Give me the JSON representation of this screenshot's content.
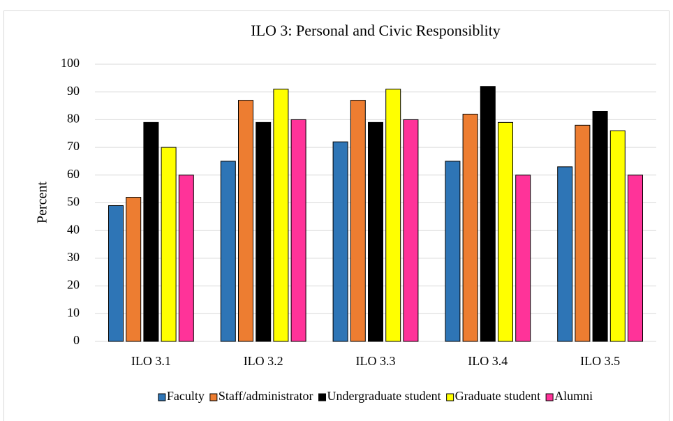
{
  "chart_data": {
    "type": "bar",
    "title": "ILO 3: Personal and Civic Responsiblity",
    "y_label": "Percent",
    "categories": [
      "ILO 3.1",
      "ILO 3.2",
      "ILO 3.3",
      "ILO 3.4",
      "ILO 3.5"
    ],
    "series": [
      {
        "name": "Faculty",
        "color": "#2e75b6",
        "values": [
          49,
          65,
          72,
          65,
          63
        ]
      },
      {
        "name": "Staff/administrator",
        "color": "#ed7d31",
        "values": [
          52,
          87,
          87,
          82,
          78
        ]
      },
      {
        "name": "Undergraduate student",
        "color": "#000000",
        "values": [
          79,
          79,
          79,
          92,
          83
        ]
      },
      {
        "name": "Graduate student",
        "color": "#ffff00",
        "values": [
          70,
          91,
          91,
          79,
          76
        ]
      },
      {
        "name": "Alumni",
        "color": "#ff3399",
        "values": [
          60,
          80,
          80,
          60,
          60
        ]
      }
    ],
    "ylim": [
      0,
      100
    ],
    "yticks": [
      0,
      10,
      20,
      30,
      40,
      50,
      60,
      70,
      80,
      90,
      100
    ],
    "grid": true,
    "legend": "bottom"
  }
}
